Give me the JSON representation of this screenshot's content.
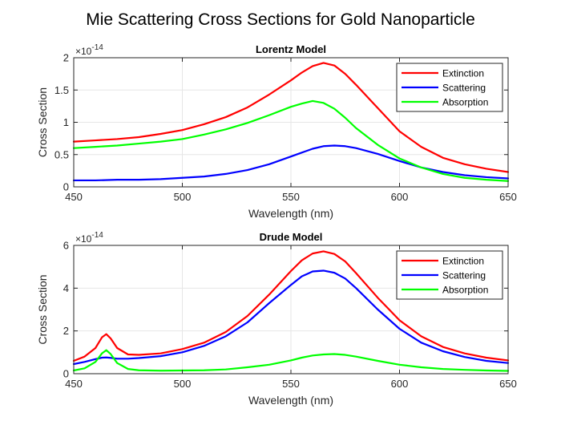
{
  "figure": {
    "title": "Mie Scattering Cross Sections for Gold Nanoparticle"
  },
  "chart_data": [
    {
      "type": "line",
      "title": "Lorentz Model",
      "xlabel": "Wavelength (nm)",
      "ylabel": "Cross Section",
      "exponent_label": "×10",
      "exponent_power": "-14",
      "xlim": [
        450,
        650
      ],
      "ylim": [
        0,
        2
      ],
      "xticks": [
        450,
        500,
        550,
        600,
        650
      ],
      "xtick_labels": [
        "450",
        "500",
        "550",
        "600",
        "650"
      ],
      "yticks": [
        0,
        0.5,
        1,
        1.5,
        2
      ],
      "ytick_labels": [
        "0",
        "0.5",
        "1",
        "1.5",
        "2"
      ],
      "grid": true,
      "legend_position": "top-right",
      "x": [
        450,
        460,
        470,
        480,
        490,
        500,
        510,
        520,
        530,
        540,
        550,
        555,
        560,
        565,
        570,
        575,
        580,
        590,
        600,
        610,
        620,
        630,
        640,
        650
      ],
      "series": [
        {
          "name": "Extinction",
          "color": "#ff0000",
          "values": [
            0.7,
            0.72,
            0.74,
            0.77,
            0.82,
            0.88,
            0.97,
            1.08,
            1.23,
            1.43,
            1.65,
            1.77,
            1.87,
            1.92,
            1.88,
            1.75,
            1.58,
            1.22,
            0.86,
            0.62,
            0.45,
            0.35,
            0.28,
            0.23
          ]
        },
        {
          "name": "Scattering",
          "color": "#0000ff",
          "values": [
            0.1,
            0.1,
            0.11,
            0.11,
            0.12,
            0.14,
            0.16,
            0.2,
            0.26,
            0.35,
            0.47,
            0.53,
            0.59,
            0.63,
            0.64,
            0.63,
            0.6,
            0.51,
            0.4,
            0.3,
            0.23,
            0.18,
            0.15,
            0.13
          ]
        },
        {
          "name": "Absorption",
          "color": "#00ff00",
          "values": [
            0.6,
            0.62,
            0.64,
            0.67,
            0.7,
            0.74,
            0.81,
            0.89,
            0.99,
            1.11,
            1.24,
            1.29,
            1.33,
            1.3,
            1.21,
            1.07,
            0.91,
            0.65,
            0.44,
            0.3,
            0.2,
            0.14,
            0.11,
            0.09
          ]
        }
      ]
    },
    {
      "type": "line",
      "title": "Drude Model",
      "xlabel": "Wavelength (nm)",
      "ylabel": "Cross Section",
      "exponent_label": "×10",
      "exponent_power": "-14",
      "xlim": [
        450,
        650
      ],
      "ylim": [
        0,
        6
      ],
      "xticks": [
        450,
        500,
        550,
        600,
        650
      ],
      "xtick_labels": [
        "450",
        "500",
        "550",
        "600",
        "650"
      ],
      "yticks": [
        0,
        2,
        4,
        6
      ],
      "ytick_labels": [
        "0",
        "2",
        "4",
        "6"
      ],
      "grid": true,
      "legend_position": "top-right",
      "x": [
        450,
        455,
        460,
        463,
        465,
        467,
        470,
        475,
        480,
        490,
        500,
        510,
        520,
        530,
        540,
        550,
        555,
        560,
        565,
        570,
        575,
        580,
        590,
        600,
        610,
        620,
        630,
        640,
        650
      ],
      "series": [
        {
          "name": "Extinction",
          "color": "#ff0000",
          "values": [
            0.6,
            0.8,
            1.2,
            1.7,
            1.85,
            1.65,
            1.2,
            0.9,
            0.88,
            0.95,
            1.15,
            1.45,
            1.95,
            2.7,
            3.7,
            4.8,
            5.3,
            5.62,
            5.72,
            5.6,
            5.25,
            4.7,
            3.55,
            2.5,
            1.75,
            1.25,
            0.95,
            0.75,
            0.62
          ]
        },
        {
          "name": "Scattering",
          "color": "#0000ff",
          "values": [
            0.45,
            0.55,
            0.68,
            0.75,
            0.76,
            0.74,
            0.7,
            0.7,
            0.73,
            0.82,
            1.0,
            1.3,
            1.75,
            2.4,
            3.3,
            4.15,
            4.55,
            4.78,
            4.82,
            4.72,
            4.45,
            4.0,
            3.0,
            2.1,
            1.45,
            1.05,
            0.78,
            0.6,
            0.5
          ]
        },
        {
          "name": "Absorption",
          "color": "#00ff00",
          "values": [
            0.15,
            0.25,
            0.55,
            0.95,
            1.1,
            0.92,
            0.5,
            0.22,
            0.16,
            0.14,
            0.15,
            0.16,
            0.2,
            0.3,
            0.42,
            0.62,
            0.75,
            0.85,
            0.9,
            0.92,
            0.88,
            0.8,
            0.6,
            0.42,
            0.3,
            0.22,
            0.18,
            0.15,
            0.13
          ]
        }
      ]
    }
  ]
}
